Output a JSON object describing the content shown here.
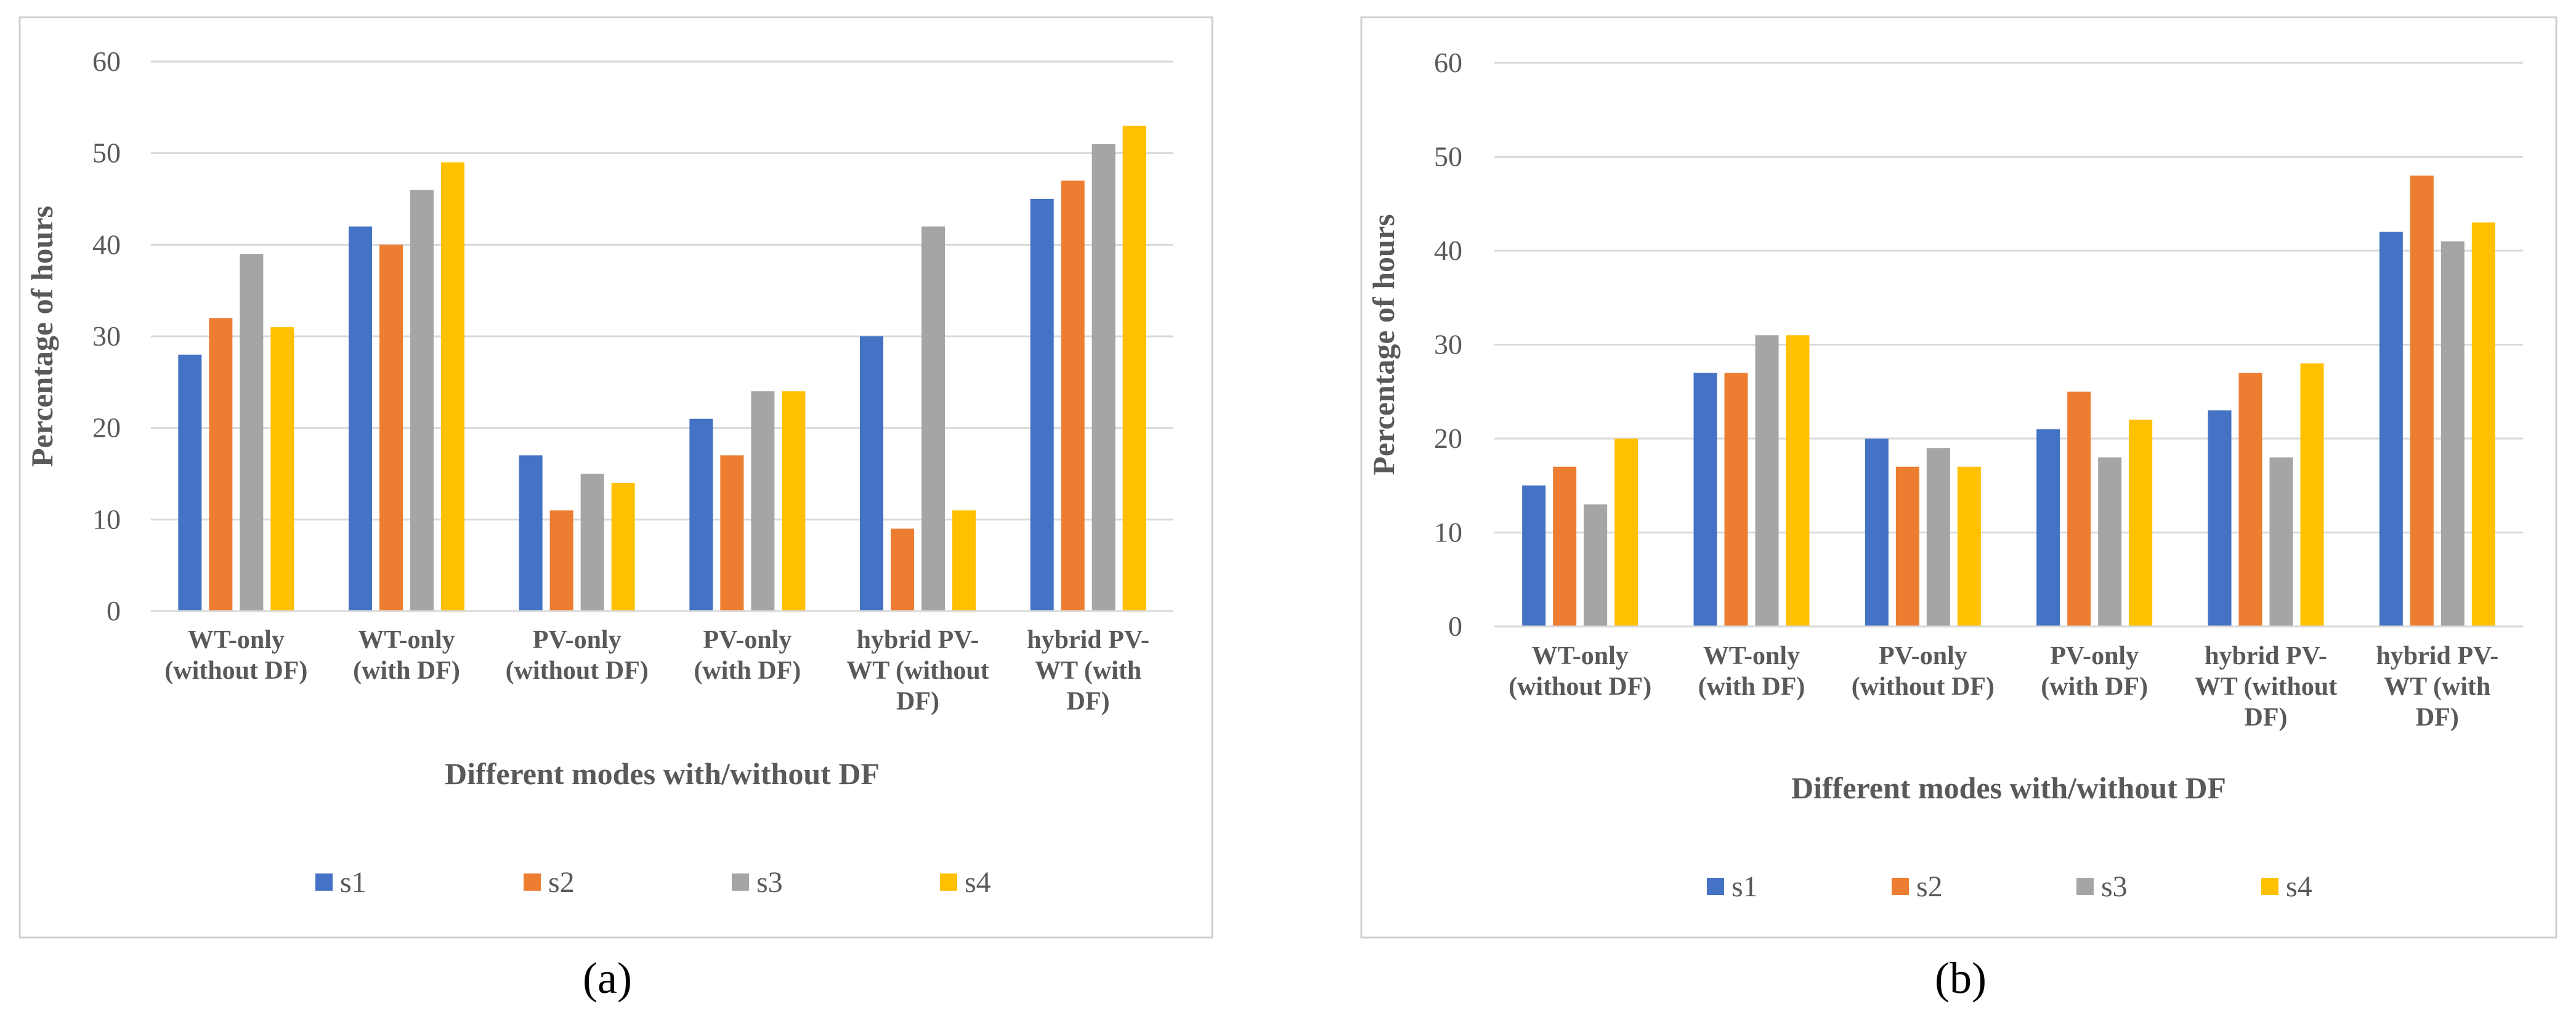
{
  "chart_data": [
    {
      "type": "bar",
      "panel_label": "(a)",
      "panel_letter": "a",
      "xlabel": "Different modes with/without DF",
      "ylabel": "Percentage of hours",
      "ylim": [
        0,
        60
      ],
      "yticks": [
        "0",
        "10",
        "20",
        "30",
        "40",
        "50",
        "60"
      ],
      "grid": true,
      "legend_position": "bottom",
      "categories": [
        [
          "WT-only",
          "(without DF)"
        ],
        [
          "WT-only",
          "(with DF)"
        ],
        [
          "PV-only",
          "(without DF)"
        ],
        [
          "PV-only",
          "(with DF)"
        ],
        [
          "hybrid PV-",
          "WT (without",
          "DF)"
        ],
        [
          "hybrid PV-",
          "WT (with",
          "DF)"
        ]
      ],
      "series": [
        {
          "name": "s1",
          "color": "#4472C4",
          "values": [
            28,
            42,
            17,
            21,
            30,
            45
          ]
        },
        {
          "name": "s2",
          "color": "#ED7D31",
          "values": [
            32,
            40,
            11,
            17,
            9,
            47
          ]
        },
        {
          "name": "s3",
          "color": "#A5A5A5",
          "values": [
            39,
            46,
            15,
            24,
            42,
            51
          ]
        },
        {
          "name": "s4",
          "color": "#FFC000",
          "values": [
            31,
            49,
            14,
            24,
            11,
            53
          ]
        }
      ]
    },
    {
      "type": "bar",
      "panel_label": "(b)",
      "panel_letter": "b",
      "xlabel": "Different modes with/without DF",
      "ylabel": "Percentage of hours",
      "ylim": [
        0,
        60
      ],
      "yticks": [
        "0",
        "10",
        "20",
        "30",
        "40",
        "50",
        "60"
      ],
      "grid": true,
      "legend_position": "bottom",
      "categories": [
        [
          "WT-only",
          "(without DF)"
        ],
        [
          "WT-only",
          "(with DF)"
        ],
        [
          "PV-only",
          "(without DF)"
        ],
        [
          "PV-only",
          "(with DF)"
        ],
        [
          "hybrid PV-",
          "WT (without",
          "DF)"
        ],
        [
          "hybrid PV-",
          "WT (with",
          "DF)"
        ]
      ],
      "series": [
        {
          "name": "s1",
          "color": "#4472C4",
          "values": [
            15,
            27,
            20,
            21,
            23,
            42
          ]
        },
        {
          "name": "s2",
          "color": "#ED7D31",
          "values": [
            17,
            27,
            17,
            25,
            27,
            48
          ]
        },
        {
          "name": "s3",
          "color": "#A5A5A5",
          "values": [
            13,
            31,
            19,
            18,
            18,
            41
          ]
        },
        {
          "name": "s4",
          "color": "#FFC000",
          "values": [
            20,
            31,
            17,
            22,
            28,
            43
          ]
        }
      ]
    }
  ]
}
